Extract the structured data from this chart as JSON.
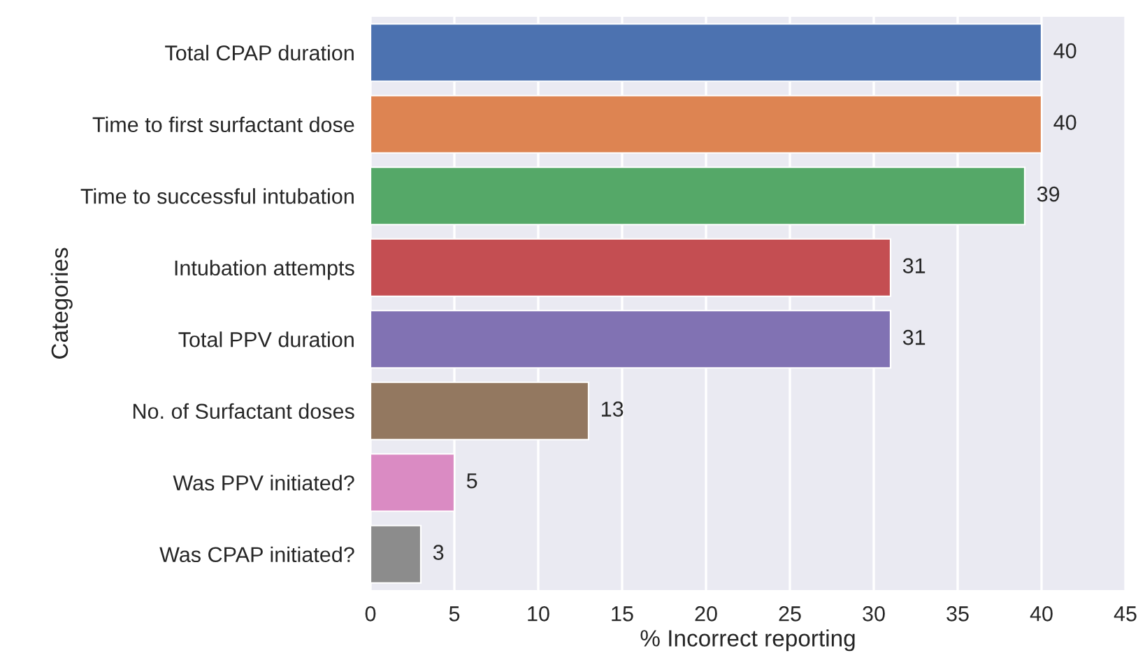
{
  "chart_data": {
    "type": "bar",
    "orientation": "horizontal",
    "xlabel": "% Incorrect reporting",
    "ylabel": "Categories",
    "categories": [
      "Total CPAP duration",
      "Time to first surfactant dose",
      "Time to successful intubation",
      "Intubation attempts",
      "Total PPV duration",
      "No. of Surfactant doses",
      "Was PPV initiated?",
      "Was CPAP initiated?"
    ],
    "values": [
      40,
      40,
      39,
      31,
      31,
      13,
      5,
      3
    ],
    "colors": [
      "#4c72b0",
      "#dd8452",
      "#55a868",
      "#c44e52",
      "#8172b3",
      "#937860",
      "#da8bc3",
      "#8c8c8c"
    ],
    "xlim": [
      0,
      45
    ],
    "xticks": [
      0,
      5,
      10,
      15,
      20,
      25,
      30,
      35,
      40,
      45
    ],
    "grid": "x",
    "data_labels": true
  }
}
